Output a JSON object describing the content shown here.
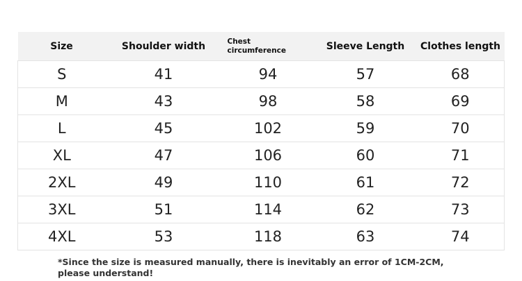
{
  "table": {
    "headers": [
      "Size",
      "Shoulder width",
      "Chest circumference",
      "Sleeve Length",
      "Clothes length"
    ],
    "rows": [
      [
        "S",
        41,
        94,
        57,
        68
      ],
      [
        "M",
        43,
        98,
        58,
        69
      ],
      [
        "L",
        45,
        102,
        59,
        70
      ],
      [
        "XL",
        47,
        106,
        60,
        71
      ],
      [
        "2XL",
        49,
        110,
        61,
        72
      ],
      [
        "3XL",
        51,
        114,
        62,
        73
      ],
      [
        "4XL",
        53,
        118,
        63,
        74
      ]
    ]
  },
  "footnote": "*Since the size is measured manually, there is inevitably an error of 1CM-2CM, please understand!"
}
